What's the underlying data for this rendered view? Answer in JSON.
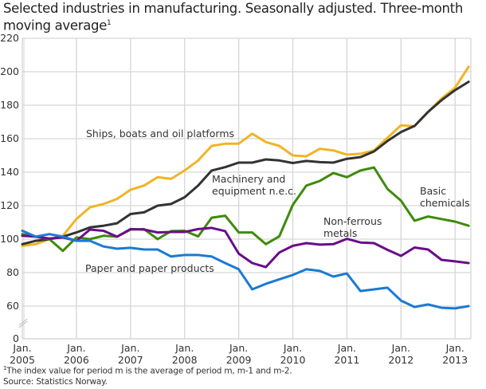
{
  "chart_data": {
    "type": "line",
    "title": "Selected industries in manufacturing. Seasonally adjusted. Three-month moving average",
    "title_footnote_mark": "1",
    "xlabel": "",
    "ylabel": "",
    "ylim": [
      0,
      220
    ],
    "y_axis_break": "between 0 and 60",
    "yticks": [
      0,
      60,
      80,
      100,
      120,
      140,
      160,
      180,
      200,
      220
    ],
    "xticks": [
      "Jan.\n2005",
      "Jan.\n2006",
      "Jan.\n2007",
      "Jan.\n2008",
      "Jan.\n2009",
      "Jan.\n2010",
      "Jan.\n2011",
      "Jan.\n2012",
      "Jan.\n2013"
    ],
    "grid": true,
    "legend": "inline labels",
    "x": [
      "2005-01",
      "2005-04",
      "2005-07",
      "2005-10",
      "2006-01",
      "2006-04",
      "2006-07",
      "2006-10",
      "2007-01",
      "2007-04",
      "2007-07",
      "2007-10",
      "2008-01",
      "2008-04",
      "2008-07",
      "2008-10",
      "2009-01",
      "2009-04",
      "2009-07",
      "2009-10",
      "2010-01",
      "2010-04",
      "2010-07",
      "2010-10",
      "2011-01",
      "2011-04",
      "2011-07",
      "2011-10",
      "2012-01",
      "2012-04",
      "2012-07",
      "2012-10",
      "2013-01",
      "2013-04"
    ],
    "series": [
      {
        "name": "Ships, boats and oil platforms",
        "color": "#f0b428",
        "values": [
          96,
          97,
          100,
          102,
          112,
          119,
          121,
          124,
          129.5,
          132,
          137,
          136,
          141,
          147,
          155.7,
          157,
          157,
          163,
          158,
          155.7,
          150,
          149.5,
          154,
          153,
          150.5,
          151,
          153,
          160.5,
          168,
          167.5,
          176,
          184,
          190.5,
          203
        ]
      },
      {
        "name": "Machinery and equipment n.e.c.",
        "color": "#333333",
        "values": [
          97,
          99,
          100,
          101.5,
          104,
          107,
          108,
          109.5,
          115,
          116,
          120,
          121,
          125,
          132,
          141,
          143,
          145.7,
          145.7,
          147.6,
          147,
          145.5,
          146.7,
          146,
          145.7,
          148,
          149,
          152.4,
          158.6,
          164,
          167.6,
          176,
          183,
          189,
          194
        ]
      },
      {
        "name": "Basic chemicals",
        "color": "#3f8a0c",
        "values": [
          103,
          101.5,
          100,
          93,
          101,
          100,
          102,
          101.5,
          105.7,
          106,
          100,
          104.8,
          105,
          101.6,
          112.8,
          114,
          104,
          104,
          97,
          101.6,
          120.5,
          132,
          134.8,
          139.5,
          137,
          141,
          142.8,
          130,
          123,
          111,
          113.5,
          112,
          110.5,
          108
        ]
      },
      {
        "name": "Non-ferrous metals",
        "color": "#6a0d8a",
        "values": [
          102,
          101.5,
          100.4,
          101,
          99,
          105.7,
          105,
          101.5,
          106,
          105.7,
          104,
          104.3,
          104.3,
          106,
          106.7,
          104.8,
          91.4,
          85.7,
          83.3,
          92,
          96,
          97.6,
          96.7,
          97,
          100.2,
          98,
          97.6,
          93.6,
          90,
          95,
          93.8,
          87.6,
          86.7,
          85.7
        ]
      },
      {
        "name": "Paper and paper products",
        "color": "#1a7ad4",
        "values": [
          105,
          101.5,
          103,
          101.5,
          99,
          99,
          95.6,
          94.3,
          94.8,
          93.8,
          93.8,
          89.6,
          90.5,
          90.5,
          89.6,
          85.7,
          82,
          70,
          73.3,
          76,
          78.6,
          82,
          81,
          77.6,
          79.5,
          69,
          70,
          71,
          63.3,
          59.5,
          61,
          59,
          58.6,
          60
        ]
      }
    ],
    "annotations": {
      "ships": "Ships, boats and oil platforms",
      "machinery_1": "Machinery and",
      "machinery_2": "equipment n.e.c.",
      "chemicals_1": "Basic",
      "chemicals_2": "chemicals",
      "nonferrous_1": "Non-ferrous",
      "nonferrous_2": "metals",
      "paper": "Paper and paper products"
    }
  },
  "footnote": "The index value for period m is the average of period m, m-1 and m-2.",
  "footnote_mark": "1",
  "source": "Source: Statistics Norway."
}
